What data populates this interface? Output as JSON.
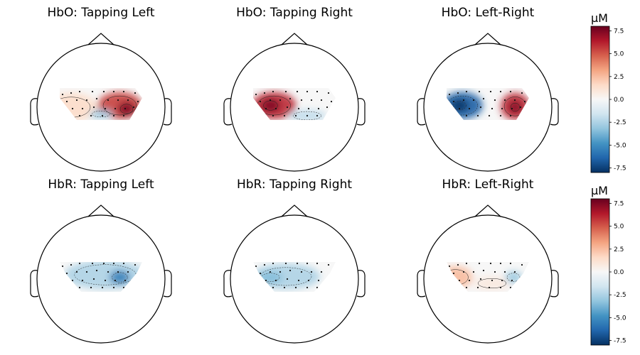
{
  "chart_data": {
    "type": "topomap",
    "colormap": "RdBu_r",
    "colorbar_ticks": [
      "7.5",
      "5.0",
      "2.5",
      "0.0",
      "-2.5",
      "-5.0",
      "-7.5"
    ],
    "colorbar_range": [
      -8,
      8
    ],
    "colorbar_unit": "μM",
    "panels": [
      {
        "title": "HbO: Tapping Left",
        "blobs": [
          {
            "cx": 0.22,
            "cy": -0.02,
            "rx": 0.26,
            "ry": 0.16,
            "value": 5.5
          },
          {
            "cx": 0.3,
            "cy": 0.02,
            "rx": 0.1,
            "ry": 0.08,
            "value": 7.5
          },
          {
            "cx": -0.35,
            "cy": 0.0,
            "rx": 0.3,
            "ry": 0.17,
            "value": 1.5
          },
          {
            "cx": 0.0,
            "cy": 0.08,
            "rx": 0.14,
            "ry": 0.05,
            "value": -3.0
          }
        ]
      },
      {
        "title": "HbO: Tapping Right",
        "blobs": [
          {
            "cx": -0.24,
            "cy": -0.02,
            "rx": 0.26,
            "ry": 0.16,
            "value": 6.0
          },
          {
            "cx": -0.28,
            "cy": -0.02,
            "rx": 0.11,
            "ry": 0.08,
            "value": 7.5
          },
          {
            "cx": 0.15,
            "cy": 0.1,
            "rx": 0.22,
            "ry": 0.07,
            "value": -2.0
          }
        ]
      },
      {
        "title": "HbO: Left-Right",
        "blobs": [
          {
            "cx": -0.3,
            "cy": -0.02,
            "rx": 0.24,
            "ry": 0.16,
            "value": -6.5
          },
          {
            "cx": -0.33,
            "cy": -0.02,
            "rx": 0.1,
            "ry": 0.07,
            "value": -8.0
          },
          {
            "cx": 0.32,
            "cy": -0.01,
            "rx": 0.17,
            "ry": 0.16,
            "value": 6.0
          },
          {
            "cx": 0.32,
            "cy": 0.0,
            "rx": 0.07,
            "ry": 0.07,
            "value": 7.5
          }
        ]
      },
      {
        "title": "HbR: Tapping Left",
        "blobs": [
          {
            "cx": 0.05,
            "cy": -0.05,
            "rx": 0.48,
            "ry": 0.17,
            "value": -2.5
          },
          {
            "cx": 0.22,
            "cy": -0.02,
            "rx": 0.12,
            "ry": 0.08,
            "value": -5.5
          }
        ]
      },
      {
        "title": "HbR: Tapping Right",
        "blobs": [
          {
            "cx": -0.1,
            "cy": -0.03,
            "rx": 0.4,
            "ry": 0.15,
            "value": -2.5
          },
          {
            "cx": -0.28,
            "cy": -0.02,
            "rx": 0.14,
            "ry": 0.07,
            "value": -3.5
          }
        ]
      },
      {
        "title": "HbR: Left-Right",
        "blobs": [
          {
            "cx": -0.38,
            "cy": -0.02,
            "rx": 0.2,
            "ry": 0.13,
            "value": 2.5
          },
          {
            "cx": 0.05,
            "cy": 0.05,
            "rx": 0.22,
            "ry": 0.08,
            "value": 0.8
          },
          {
            "cx": 0.3,
            "cy": -0.02,
            "rx": 0.1,
            "ry": 0.07,
            "value": -3.0
          }
        ]
      }
    ]
  }
}
